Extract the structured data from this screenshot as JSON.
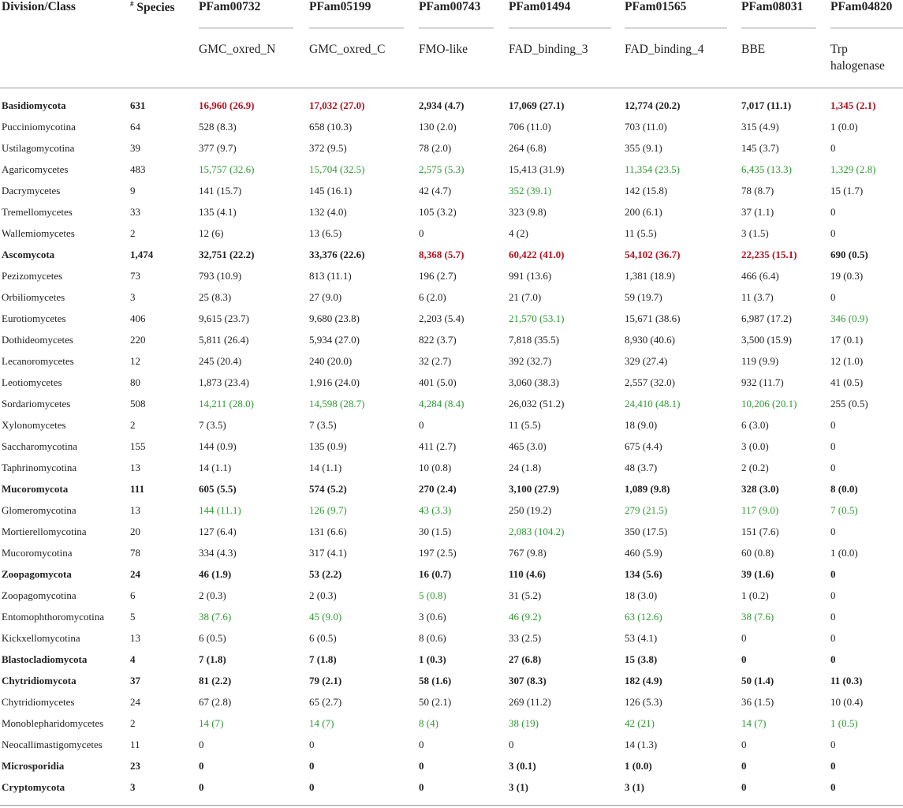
{
  "header": {
    "division_label": "Division/Class",
    "species_sup": "#",
    "species_label": " Species",
    "columns": [
      {
        "pfam": "PFam00732",
        "name": "GMC_oxred_N"
      },
      {
        "pfam": "PFam05199",
        "name": "GMC_oxred_C"
      },
      {
        "pfam": "PFam00743",
        "name": "FMO-like"
      },
      {
        "pfam": "PFam01494",
        "name": "FAD_binding_3"
      },
      {
        "pfam": "PFam01565",
        "name": "FAD_binding_4"
      },
      {
        "pfam": "PFam08031",
        "name": "BBE"
      },
      {
        "pfam": "PFam04820",
        "name": "Trp halogenase"
      }
    ]
  },
  "colors": {
    "red": "#b3121f",
    "green": "#2e9a31",
    "text": "#222222"
  },
  "rows": [
    {
      "name": "Basidiomycota",
      "species": "631",
      "bold": true,
      "cells": [
        {
          "v": "16,960 (26.9)",
          "c": "red"
        },
        {
          "v": "17,032 (27.0)",
          "c": "red"
        },
        {
          "v": "2,934 (4.7)",
          "c": ""
        },
        {
          "v": "17,069 (27.1)",
          "c": ""
        },
        {
          "v": "12,774 (20.2)",
          "c": ""
        },
        {
          "v": "7,017 (11.1)",
          "c": ""
        },
        {
          "v": "1,345 (2.1)",
          "c": "red"
        }
      ]
    },
    {
      "name": "Pucciniomycotina",
      "species": "64",
      "bold": false,
      "cells": [
        {
          "v": "528 (8.3)",
          "c": ""
        },
        {
          "v": "658 (10.3)",
          "c": ""
        },
        {
          "v": "130 (2.0)",
          "c": ""
        },
        {
          "v": "706 (11.0)",
          "c": ""
        },
        {
          "v": "703 (11.0)",
          "c": ""
        },
        {
          "v": "315 (4.9)",
          "c": ""
        },
        {
          "v": "1 (0.0)",
          "c": ""
        }
      ]
    },
    {
      "name": "Ustilagomycotina",
      "species": "39",
      "bold": false,
      "cells": [
        {
          "v": "377 (9.7)",
          "c": ""
        },
        {
          "v": "372 (9.5)",
          "c": ""
        },
        {
          "v": "78 (2.0)",
          "c": ""
        },
        {
          "v": "264 (6.8)",
          "c": ""
        },
        {
          "v": "355 (9.1)",
          "c": ""
        },
        {
          "v": "145 (3.7)",
          "c": ""
        },
        {
          "v": "0",
          "c": ""
        }
      ]
    },
    {
      "name": "Agaricomycetes",
      "species": "483",
      "bold": false,
      "cells": [
        {
          "v": "15,757 (32.6)",
          "c": "grn"
        },
        {
          "v": "15,704 (32.5)",
          "c": "grn"
        },
        {
          "v": "2,575 (5.3)",
          "c": "grn"
        },
        {
          "v": "15,413 (31.9)",
          "c": ""
        },
        {
          "v": "11,354 (23.5)",
          "c": "grn"
        },
        {
          "v": "6,435 (13.3)",
          "c": "grn"
        },
        {
          "v": "1,329 (2.8)",
          "c": "grn"
        }
      ]
    },
    {
      "name": "Dacrymycetes",
      "species": "9",
      "bold": false,
      "cells": [
        {
          "v": "141 (15.7)",
          "c": ""
        },
        {
          "v": "145 (16.1)",
          "c": ""
        },
        {
          "v": "42 (4.7)",
          "c": ""
        },
        {
          "v": "352 (39.1)",
          "c": "grn"
        },
        {
          "v": "142 (15.8)",
          "c": ""
        },
        {
          "v": "78 (8.7)",
          "c": ""
        },
        {
          "v": "15 (1.7)",
          "c": ""
        }
      ]
    },
    {
      "name": "Tremellomycetes",
      "species": "33",
      "bold": false,
      "cells": [
        {
          "v": "135 (4.1)",
          "c": ""
        },
        {
          "v": "132 (4.0)",
          "c": ""
        },
        {
          "v": "105 (3.2)",
          "c": ""
        },
        {
          "v": "323 (9.8)",
          "c": ""
        },
        {
          "v": "200 (6.1)",
          "c": ""
        },
        {
          "v": "37 (1.1)",
          "c": ""
        },
        {
          "v": "0",
          "c": ""
        }
      ]
    },
    {
      "name": "Wallemiomycetes",
      "species": "2",
      "bold": false,
      "cells": [
        {
          "v": "12 (6)",
          "c": ""
        },
        {
          "v": "13 (6.5)",
          "c": ""
        },
        {
          "v": "0",
          "c": ""
        },
        {
          "v": "4 (2)",
          "c": ""
        },
        {
          "v": "11 (5.5)",
          "c": ""
        },
        {
          "v": "3 (1.5)",
          "c": ""
        },
        {
          "v": "0",
          "c": ""
        }
      ]
    },
    {
      "name": "Ascomycota",
      "species": "1,474",
      "bold": true,
      "cells": [
        {
          "v": "32,751 (22.2)",
          "c": ""
        },
        {
          "v": "33,376 (22.6)",
          "c": ""
        },
        {
          "v": "8,368 (5.7)",
          "c": "red"
        },
        {
          "v": "60,422 (41.0)",
          "c": "red"
        },
        {
          "v": "54,102 (36.7)",
          "c": "red"
        },
        {
          "v": "22,235 (15.1)",
          "c": "red"
        },
        {
          "v": "690 (0.5)",
          "c": ""
        }
      ]
    },
    {
      "name": "Pezizomycetes",
      "species": "73",
      "bold": false,
      "cells": [
        {
          "v": "793 (10.9)",
          "c": ""
        },
        {
          "v": "813 (11.1)",
          "c": ""
        },
        {
          "v": "196 (2.7)",
          "c": ""
        },
        {
          "v": "991 (13.6)",
          "c": ""
        },
        {
          "v": "1,381 (18.9)",
          "c": ""
        },
        {
          "v": "466 (6.4)",
          "c": ""
        },
        {
          "v": "19 (0.3)",
          "c": ""
        }
      ]
    },
    {
      "name": "Orbiliomycetes",
      "species": "3",
      "bold": false,
      "cells": [
        {
          "v": "25 (8.3)",
          "c": ""
        },
        {
          "v": "27 (9.0)",
          "c": ""
        },
        {
          "v": "6 (2.0)",
          "c": ""
        },
        {
          "v": "21 (7.0)",
          "c": ""
        },
        {
          "v": "59 (19.7)",
          "c": ""
        },
        {
          "v": "11 (3.7)",
          "c": ""
        },
        {
          "v": "0",
          "c": ""
        }
      ]
    },
    {
      "name": "Eurotiomycetes",
      "species": "406",
      "bold": false,
      "cells": [
        {
          "v": "9,615 (23.7)",
          "c": ""
        },
        {
          "v": "9,680 (23.8)",
          "c": ""
        },
        {
          "v": "2,203 (5.4)",
          "c": ""
        },
        {
          "v": "21,570 (53.1)",
          "c": "grn"
        },
        {
          "v": "15,671 (38.6)",
          "c": ""
        },
        {
          "v": "6,987 (17.2)",
          "c": ""
        },
        {
          "v": "346 (0.9)",
          "c": "grn"
        }
      ]
    },
    {
      "name": "Dothideomycetes",
      "species": "220",
      "bold": false,
      "cells": [
        {
          "v": "5,811 (26.4)",
          "c": ""
        },
        {
          "v": "5,934 (27.0)",
          "c": ""
        },
        {
          "v": "822 (3.7)",
          "c": ""
        },
        {
          "v": "7,818 (35.5)",
          "c": ""
        },
        {
          "v": "8,930 (40.6)",
          "c": ""
        },
        {
          "v": "3,500 (15.9)",
          "c": ""
        },
        {
          "v": "17 (0.1)",
          "c": ""
        }
      ]
    },
    {
      "name": "Lecanoromycetes",
      "species": "12",
      "bold": false,
      "cells": [
        {
          "v": "245 (20.4)",
          "c": ""
        },
        {
          "v": "240 (20.0)",
          "c": ""
        },
        {
          "v": "32 (2.7)",
          "c": ""
        },
        {
          "v": "392 (32.7)",
          "c": ""
        },
        {
          "v": "329 (27.4)",
          "c": ""
        },
        {
          "v": "119 (9.9)",
          "c": ""
        },
        {
          "v": "12 (1.0)",
          "c": ""
        }
      ]
    },
    {
      "name": "Leotiomycetes",
      "species": "80",
      "bold": false,
      "cells": [
        {
          "v": "1,873 (23.4)",
          "c": ""
        },
        {
          "v": "1,916 (24.0)",
          "c": ""
        },
        {
          "v": "401 (5.0)",
          "c": ""
        },
        {
          "v": "3,060 (38.3)",
          "c": ""
        },
        {
          "v": "2,557 (32.0)",
          "c": ""
        },
        {
          "v": "932 (11.7)",
          "c": ""
        },
        {
          "v": "41 (0.5)",
          "c": ""
        }
      ]
    },
    {
      "name": "Sordariomycetes",
      "species": "508",
      "bold": false,
      "cells": [
        {
          "v": "14,211 (28.0)",
          "c": "grn"
        },
        {
          "v": "14,598 (28.7)",
          "c": "grn"
        },
        {
          "v": "4,284 (8.4)",
          "c": "grn"
        },
        {
          "v": "26,032 (51.2)",
          "c": ""
        },
        {
          "v": "24,410 (48.1)",
          "c": "grn"
        },
        {
          "v": "10,206 (20.1)",
          "c": "grn"
        },
        {
          "v": "255 (0.5)",
          "c": ""
        }
      ]
    },
    {
      "name": "Xylonomycetes",
      "species": "2",
      "bold": false,
      "cells": [
        {
          "v": "7 (3.5)",
          "c": ""
        },
        {
          "v": "7 (3.5)",
          "c": ""
        },
        {
          "v": "0",
          "c": ""
        },
        {
          "v": "11 (5.5)",
          "c": ""
        },
        {
          "v": "18 (9.0)",
          "c": ""
        },
        {
          "v": "6 (3.0)",
          "c": ""
        },
        {
          "v": "0",
          "c": ""
        }
      ]
    },
    {
      "name": "Saccharomycotina",
      "species": "155",
      "bold": false,
      "cells": [
        {
          "v": "144 (0.9)",
          "c": ""
        },
        {
          "v": "135 (0.9)",
          "c": ""
        },
        {
          "v": "411 (2.7)",
          "c": ""
        },
        {
          "v": "465 (3.0)",
          "c": ""
        },
        {
          "v": "675 (4.4)",
          "c": ""
        },
        {
          "v": "3 (0.0)",
          "c": ""
        },
        {
          "v": "0",
          "c": ""
        }
      ]
    },
    {
      "name": "Taphrinomycotina",
      "species": "13",
      "bold": false,
      "cells": [
        {
          "v": "14 (1.1)",
          "c": ""
        },
        {
          "v": "14 (1.1)",
          "c": ""
        },
        {
          "v": "10 (0.8)",
          "c": ""
        },
        {
          "v": "24 (1.8)",
          "c": ""
        },
        {
          "v": "48 (3.7)",
          "c": ""
        },
        {
          "v": "2 (0.2)",
          "c": ""
        },
        {
          "v": "0",
          "c": ""
        }
      ]
    },
    {
      "name": "Mucoromycota",
      "species": "111",
      "bold": true,
      "cells": [
        {
          "v": "605 (5.5)",
          "c": ""
        },
        {
          "v": "574 (5.2)",
          "c": ""
        },
        {
          "v": "270 (2.4)",
          "c": ""
        },
        {
          "v": "3,100 (27.9)",
          "c": ""
        },
        {
          "v": "1,089 (9.8)",
          "c": ""
        },
        {
          "v": "328 (3.0)",
          "c": ""
        },
        {
          "v": "8 (0.0)",
          "c": ""
        }
      ]
    },
    {
      "name": "Glomeromycotina",
      "species": "13",
      "bold": false,
      "cells": [
        {
          "v": "144 (11.1)",
          "c": "grn"
        },
        {
          "v": "126 (9.7)",
          "c": "grn"
        },
        {
          "v": "43 (3.3)",
          "c": "grn"
        },
        {
          "v": "250 (19.2)",
          "c": ""
        },
        {
          "v": "279 (21.5)",
          "c": "grn"
        },
        {
          "v": "117 (9.0)",
          "c": "grn"
        },
        {
          "v": "7 (0.5)",
          "c": "grn"
        }
      ]
    },
    {
      "name": "Mortierellomycotina",
      "species": "20",
      "bold": false,
      "cells": [
        {
          "v": "127 (6.4)",
          "c": ""
        },
        {
          "v": "131 (6.6)",
          "c": ""
        },
        {
          "v": "30 (1.5)",
          "c": ""
        },
        {
          "v": "2,083 (104.2)",
          "c": "grn"
        },
        {
          "v": "350 (17.5)",
          "c": ""
        },
        {
          "v": "151 (7.6)",
          "c": ""
        },
        {
          "v": "0",
          "c": ""
        }
      ]
    },
    {
      "name": "Mucoromycotina",
      "species": "78",
      "bold": false,
      "cells": [
        {
          "v": "334 (4.3)",
          "c": ""
        },
        {
          "v": "317 (4.1)",
          "c": ""
        },
        {
          "v": "197 (2.5)",
          "c": ""
        },
        {
          "v": "767 (9.8)",
          "c": ""
        },
        {
          "v": "460 (5.9)",
          "c": ""
        },
        {
          "v": "60 (0.8)",
          "c": ""
        },
        {
          "v": "1 (0.0)",
          "c": ""
        }
      ]
    },
    {
      "name": "Zoopagomycota",
      "species": "24",
      "bold": true,
      "cells": [
        {
          "v": "46 (1.9)",
          "c": ""
        },
        {
          "v": "53 (2.2)",
          "c": ""
        },
        {
          "v": "16 (0.7)",
          "c": ""
        },
        {
          "v": "110 (4.6)",
          "c": ""
        },
        {
          "v": "134 (5.6)",
          "c": ""
        },
        {
          "v": "39 (1.6)",
          "c": ""
        },
        {
          "v": "0",
          "c": ""
        }
      ]
    },
    {
      "name": "Zoopagomycotina",
      "species": "6",
      "bold": false,
      "cells": [
        {
          "v": "2 (0.3)",
          "c": ""
        },
        {
          "v": "2 (0.3)",
          "c": ""
        },
        {
          "v": "5 (0.8)",
          "c": "grn"
        },
        {
          "v": "31 (5.2)",
          "c": ""
        },
        {
          "v": "18 (3.0)",
          "c": ""
        },
        {
          "v": "1 (0.2)",
          "c": ""
        },
        {
          "v": "0",
          "c": ""
        }
      ]
    },
    {
      "name": "Entomophthoromycotina",
      "species": "5",
      "bold": false,
      "cells": [
        {
          "v": "38 (7.6)",
          "c": "grn"
        },
        {
          "v": "45 (9.0)",
          "c": "grn"
        },
        {
          "v": "3 (0.6)",
          "c": ""
        },
        {
          "v": "46 (9.2)",
          "c": "grn"
        },
        {
          "v": "63 (12.6)",
          "c": "grn"
        },
        {
          "v": "38 (7.6)",
          "c": "grn"
        },
        {
          "v": "0",
          "c": ""
        }
      ]
    },
    {
      "name": "Kickxellomycotina",
      "species": "13",
      "bold": false,
      "cells": [
        {
          "v": "6 (0.5)",
          "c": ""
        },
        {
          "v": "6 (0.5)",
          "c": ""
        },
        {
          "v": "8 (0.6)",
          "c": ""
        },
        {
          "v": "33 (2.5)",
          "c": ""
        },
        {
          "v": "53 (4.1)",
          "c": ""
        },
        {
          "v": "0",
          "c": ""
        },
        {
          "v": "0",
          "c": ""
        }
      ]
    },
    {
      "name": "Blastocladiomycota",
      "species": "4",
      "bold": true,
      "cells": [
        {
          "v": "7 (1.8)",
          "c": ""
        },
        {
          "v": "7 (1.8)",
          "c": ""
        },
        {
          "v": "1 (0.3)",
          "c": ""
        },
        {
          "v": "27 (6.8)",
          "c": ""
        },
        {
          "v": "15 (3.8)",
          "c": ""
        },
        {
          "v": "0",
          "c": ""
        },
        {
          "v": "0",
          "c": ""
        }
      ]
    },
    {
      "name": "Chytridiomycota",
      "species": "37",
      "bold": true,
      "cells": [
        {
          "v": "81 (2.2)",
          "c": ""
        },
        {
          "v": "79 (2.1)",
          "c": ""
        },
        {
          "v": "58 (1.6)",
          "c": ""
        },
        {
          "v": "307 (8.3)",
          "c": ""
        },
        {
          "v": "182 (4.9)",
          "c": ""
        },
        {
          "v": "50 (1.4)",
          "c": ""
        },
        {
          "v": "11 (0.3)",
          "c": ""
        }
      ]
    },
    {
      "name": "Chytridiomycetes",
      "species": "24",
      "bold": false,
      "cells": [
        {
          "v": "67 (2.8)",
          "c": ""
        },
        {
          "v": "65 (2.7)",
          "c": ""
        },
        {
          "v": "50 (2.1)",
          "c": ""
        },
        {
          "v": "269 (11.2)",
          "c": ""
        },
        {
          "v": "126 (5.3)",
          "c": ""
        },
        {
          "v": "36 (1.5)",
          "c": ""
        },
        {
          "v": "10 (0.4)",
          "c": ""
        }
      ]
    },
    {
      "name": "Monoblepharidomycetes",
      "species": "2",
      "bold": false,
      "cells": [
        {
          "v": "14 (7)",
          "c": "grn"
        },
        {
          "v": "14 (7)",
          "c": "grn"
        },
        {
          "v": "8 (4)",
          "c": "grn"
        },
        {
          "v": "38 (19)",
          "c": "grn"
        },
        {
          "v": "42 (21)",
          "c": "grn"
        },
        {
          "v": "14 (7)",
          "c": "grn"
        },
        {
          "v": "1 (0.5)",
          "c": "grn"
        }
      ]
    },
    {
      "name": "Neocallimastigomycetes",
      "species": "11",
      "bold": false,
      "cells": [
        {
          "v": "0",
          "c": ""
        },
        {
          "v": "0",
          "c": ""
        },
        {
          "v": "0",
          "c": ""
        },
        {
          "v": "0",
          "c": ""
        },
        {
          "v": "14 (1.3)",
          "c": ""
        },
        {
          "v": "0",
          "c": ""
        },
        {
          "v": "0",
          "c": ""
        }
      ]
    },
    {
      "name": "Microsporidia",
      "species": "23",
      "bold": true,
      "cells": [
        {
          "v": "0",
          "c": ""
        },
        {
          "v": "0",
          "c": ""
        },
        {
          "v": "0",
          "c": ""
        },
        {
          "v": "3 (0.1)",
          "c": ""
        },
        {
          "v": "1 (0.0)",
          "c": ""
        },
        {
          "v": "0",
          "c": ""
        },
        {
          "v": "0",
          "c": ""
        }
      ]
    },
    {
      "name": "Cryptomycota",
      "species": "3",
      "bold": true,
      "cells": [
        {
          "v": "0",
          "c": ""
        },
        {
          "v": "0",
          "c": ""
        },
        {
          "v": "0",
          "c": ""
        },
        {
          "v": "3 (1)",
          "c": ""
        },
        {
          "v": "3 (1)",
          "c": ""
        },
        {
          "v": "0",
          "c": ""
        },
        {
          "v": "0",
          "c": ""
        }
      ]
    }
  ]
}
